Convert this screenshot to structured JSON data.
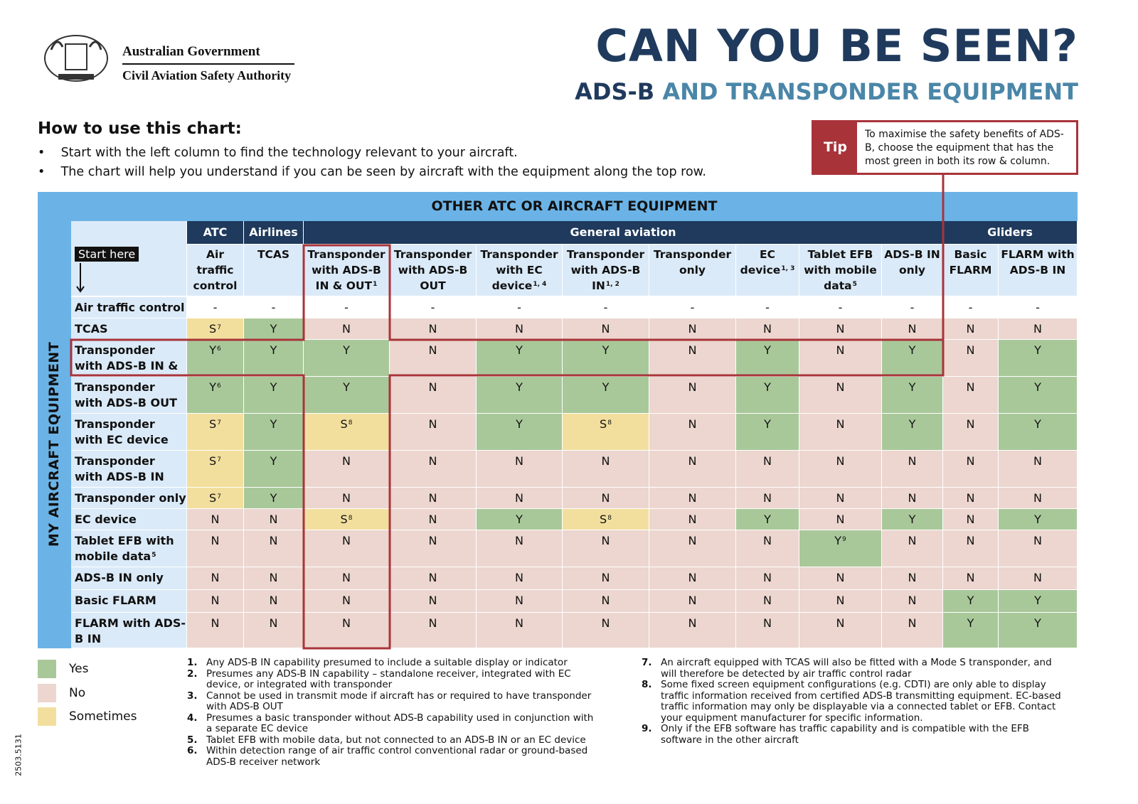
{
  "header": {
    "org_line1": "Australian Government",
    "org_line2": "Civil Aviation Safety Authority",
    "title": "CAN YOU BE SEEN?",
    "subtitle_part1": "ADS-B",
    "subtitle_part2": "AND TRANSPONDER EQUIPMENT"
  },
  "instructions": {
    "heading": "How to use this chart:",
    "bullets": [
      "Start with the left column to find the technology relevant to your aircraft.",
      "The chart will help you understand if you can be seen by aircraft with the equipment along the top row."
    ]
  },
  "tip": {
    "label": "Tip",
    "text": "To maximise the safety benefits of ADS-B, choose the equipment that has the most green in both its row & column."
  },
  "table": {
    "top_header": "OTHER ATC OR AIRCRAFT EQUIPMENT",
    "side_header": "MY AIRCRAFT EQUIPMENT",
    "start_here": "Start here",
    "groups": [
      {
        "name": "ATC",
        "columns": [
          {
            "label": "Air traffic control"
          }
        ]
      },
      {
        "name": "Airlines",
        "columns": [
          {
            "label": "TCAS"
          }
        ]
      },
      {
        "name": "General aviation",
        "columns": [
          {
            "label": "Transponder with ADS-B IN & OUT",
            "sup": "1"
          },
          {
            "label": "Transponder with ADS-B OUT"
          },
          {
            "label": "Transponder with EC device",
            "sup": "1, 4"
          },
          {
            "label": "Transponder with ADS-B IN",
            "sup": "1, 2"
          },
          {
            "label": "Transponder only"
          },
          {
            "label": "EC device",
            "sup": "1, 3"
          },
          {
            "label": "Tablet EFB with mobile data",
            "sup": "5"
          },
          {
            "label": "ADS-B IN only"
          }
        ]
      },
      {
        "name": "Gliders",
        "columns": [
          {
            "label": "Basic FLARM"
          },
          {
            "label": "FLARM with ADS-B IN"
          }
        ]
      }
    ],
    "rows": [
      {
        "label": "Air traffic control",
        "cells": [
          "-",
          "-",
          "-",
          "-",
          "-",
          "-",
          "-",
          "-",
          "-",
          "-",
          "-",
          "-"
        ]
      },
      {
        "label": "TCAS",
        "cells": [
          {
            "text": "S",
            "sup": "7"
          },
          "Y",
          "N",
          "N",
          "N",
          "N",
          "N",
          "N",
          "N",
          "N",
          "N",
          "N"
        ]
      },
      {
        "label": "Transponder with ADS-B IN & OUT",
        "cells": [
          {
            "text": "Y",
            "sup": "6"
          },
          "Y",
          "Y",
          "N",
          "Y",
          "Y",
          "N",
          "Y",
          "N",
          "Y",
          "N",
          "Y"
        ]
      },
      {
        "label": "Transponder with ADS-B OUT",
        "cells": [
          {
            "text": "Y",
            "sup": "6"
          },
          "Y",
          "Y",
          "N",
          "Y",
          "Y",
          "N",
          "Y",
          "N",
          "Y",
          "N",
          "Y"
        ]
      },
      {
        "label": "Transponder with EC device",
        "cells": [
          {
            "text": "S",
            "sup": "7"
          },
          "Y",
          {
            "text": "S",
            "sup": "8"
          },
          "N",
          "Y",
          {
            "text": "S",
            "sup": "8"
          },
          "N",
          "Y",
          "N",
          "Y",
          "N",
          "Y"
        ]
      },
      {
        "label": "Transponder with ADS-B IN",
        "cells": [
          {
            "text": "S",
            "sup": "7"
          },
          "Y",
          "N",
          "N",
          "N",
          "N",
          "N",
          "N",
          "N",
          "N",
          "N",
          "N"
        ]
      },
      {
        "label": "Transponder only",
        "cells": [
          {
            "text": "S",
            "sup": "7"
          },
          "Y",
          "N",
          "N",
          "N",
          "N",
          "N",
          "N",
          "N",
          "N",
          "N",
          "N"
        ]
      },
      {
        "label": "EC device",
        "cells": [
          "N",
          "N",
          {
            "text": "S",
            "sup": "8"
          },
          "N",
          "Y",
          {
            "text": "S",
            "sup": "8"
          },
          "N",
          "Y",
          "N",
          "Y",
          "N",
          "Y"
        ]
      },
      {
        "label": "Tablet EFB with mobile data",
        "sup": "5",
        "cells": [
          "N",
          "N",
          "N",
          "N",
          "N",
          "N",
          "N",
          "N",
          {
            "text": "Y",
            "sup": "9"
          },
          "N",
          "N",
          "N"
        ]
      },
      {
        "label": "ADS-B IN only",
        "cells": [
          "N",
          "N",
          "N",
          "N",
          "N",
          "N",
          "N",
          "N",
          "N",
          "N",
          "N",
          "N"
        ]
      },
      {
        "label": "Basic FLARM",
        "cells": [
          "N",
          "N",
          "N",
          "N",
          "N",
          "N",
          "N",
          "N",
          "N",
          "N",
          "Y",
          "Y"
        ]
      },
      {
        "label": "FLARM with ADS-B IN",
        "cells": [
          "N",
          "N",
          "N",
          "N",
          "N",
          "N",
          "N",
          "N",
          "N",
          "N",
          "Y",
          "Y"
        ]
      }
    ]
  },
  "legend": [
    "Yes",
    "No",
    "Sometimes"
  ],
  "footnotes_left": [
    {
      "num": "1.",
      "text": "Any ADS-B IN capability presumed to include a suitable display or indicator"
    },
    {
      "num": "2.",
      "text": "Presumes any ADS-B IN capability – standalone receiver, integrated with EC device, or integrated with transponder"
    },
    {
      "num": "3.",
      "text": "Cannot be used in transmit mode if aircraft has or required to have transponder with ADS-B OUT"
    },
    {
      "num": "4.",
      "text": "Presumes a basic transponder without ADS-B capability used in conjunction with a separate EC device"
    },
    {
      "num": "5.",
      "text": "Tablet EFB with mobile data, but not connected to an ADS-B IN or an EC device"
    },
    {
      "num": "6.",
      "text": "Within detection range of air traffic control conventional radar or ground-based ADS-B receiver network"
    }
  ],
  "footnotes_right": [
    {
      "num": "7.",
      "text": "An aircraft equipped with TCAS will also be fitted with a Mode S transponder, and will therefore be detected by air traffic control radar"
    },
    {
      "num": "8.",
      "text": "Some fixed screen equipment configurations (e.g. CDTI) are only able to display traffic information received from certified ADS-B transmitting equipment. EC-based traffic information may only be displayable via a connected tablet or EFB. Contact your equipment manufacturer for specific information."
    },
    {
      "num": "9.",
      "text": "Only if the EFB software has traffic capability and is compatible with the EFB software in the other aircraft"
    }
  ],
  "doc_code": "2503.5131"
}
